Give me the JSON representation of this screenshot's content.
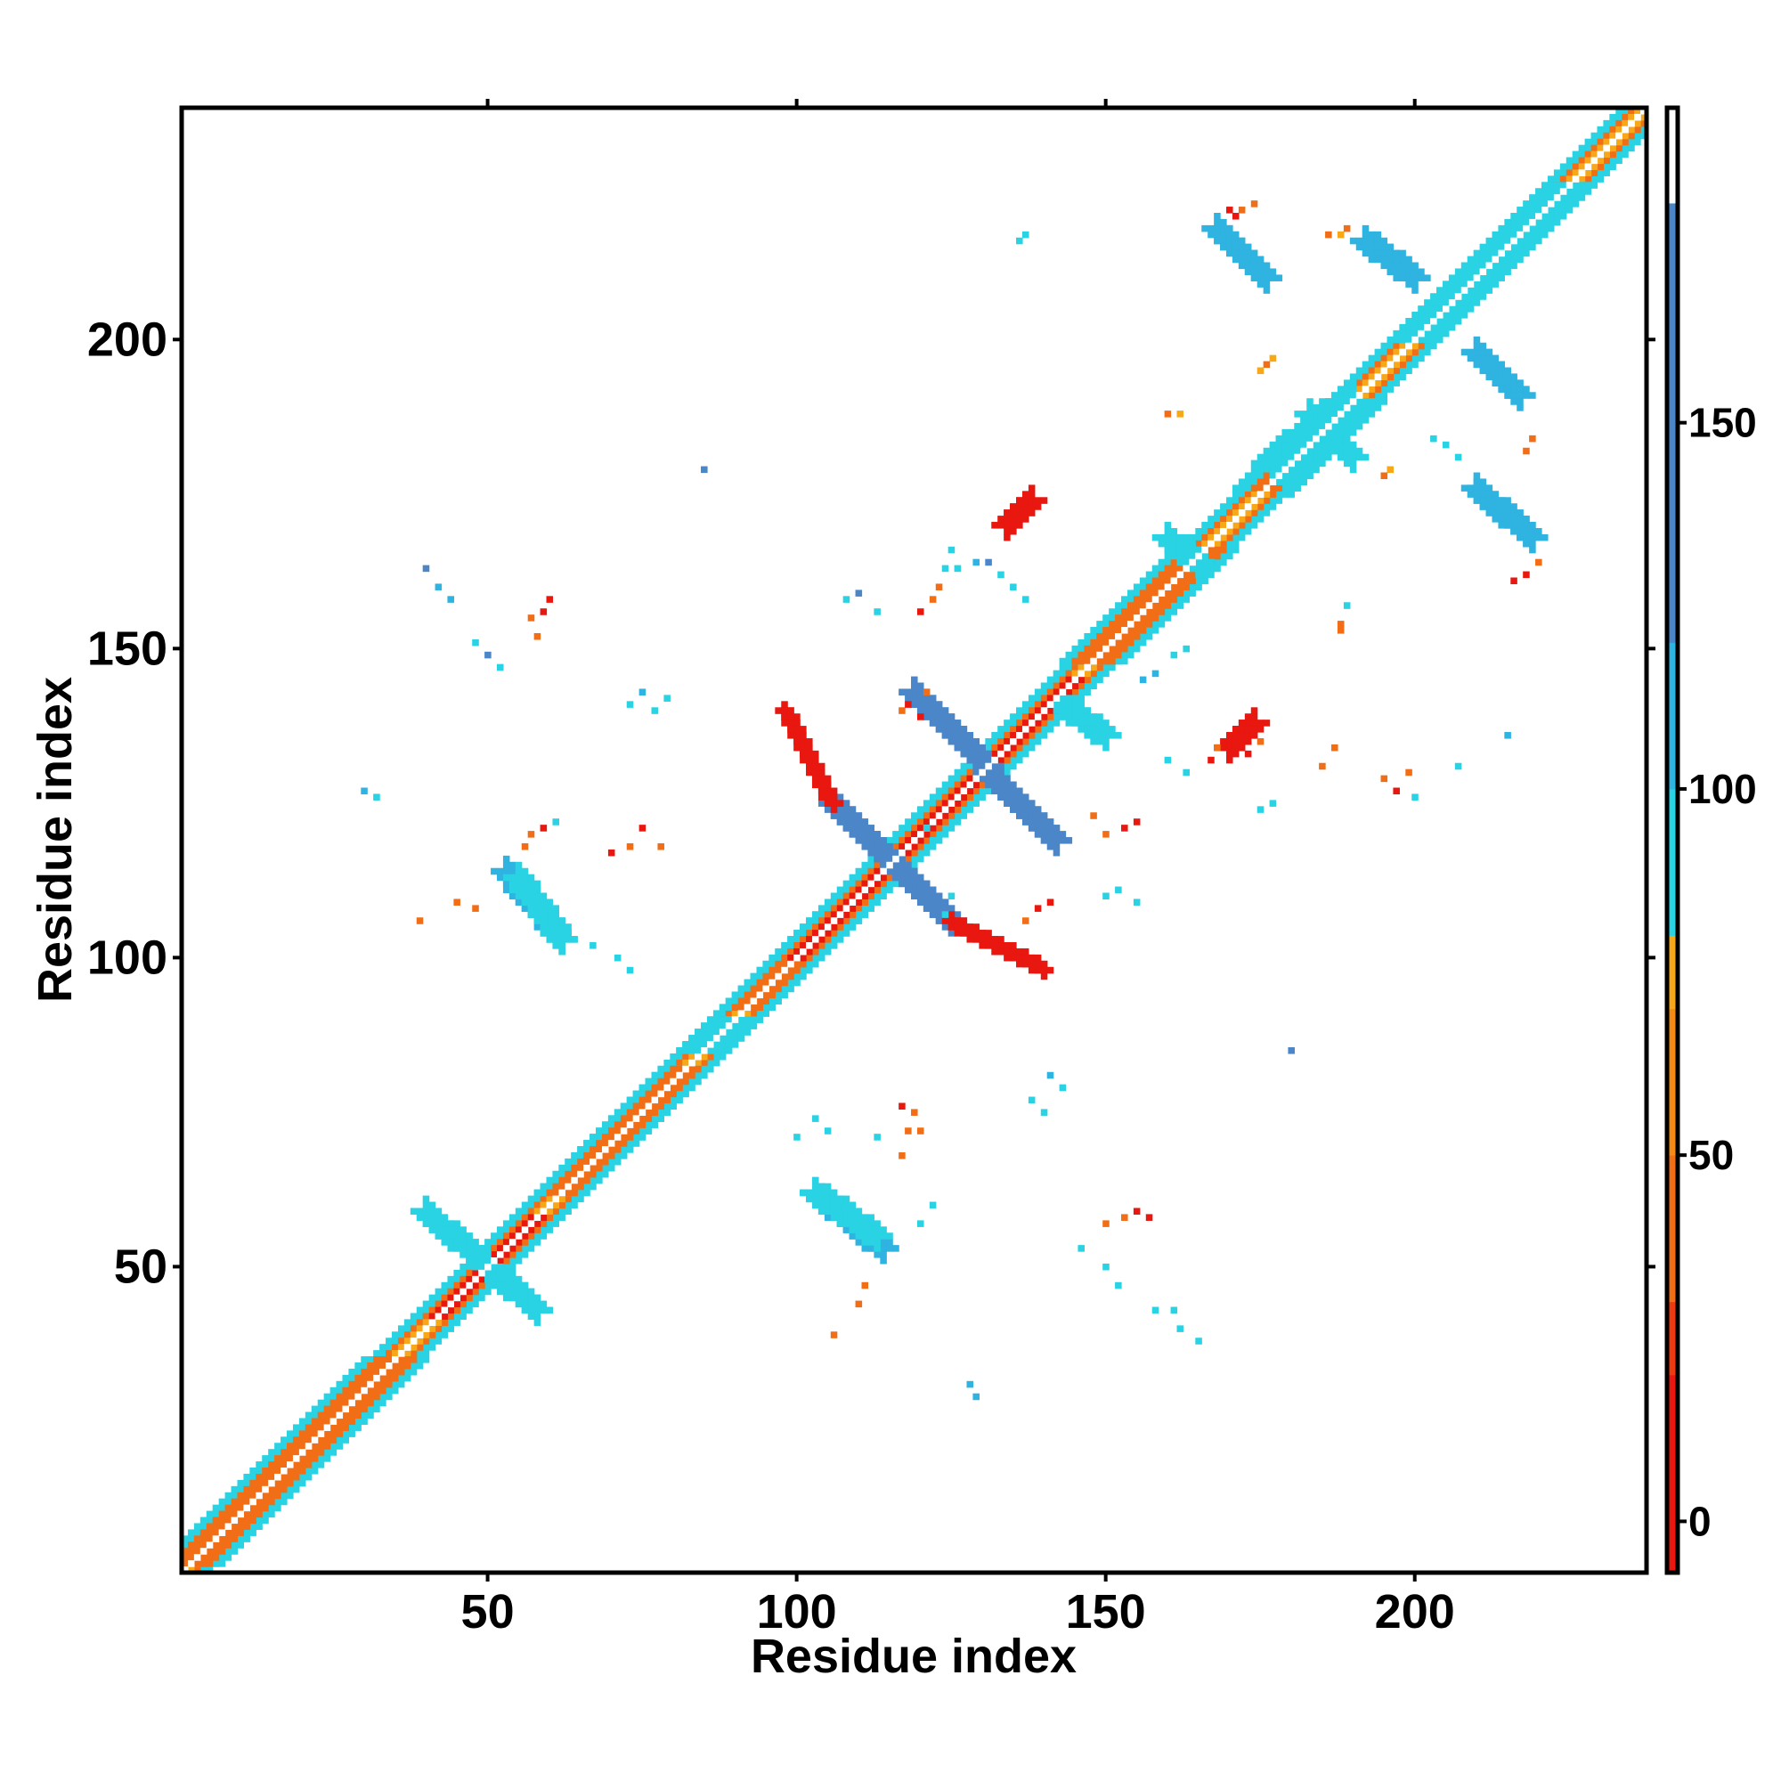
{
  "chart_data": {
    "type": "heatmap",
    "title": "",
    "xlabel": "Residue index",
    "ylabel": "Residue index",
    "xlim": [
      1,
      237
    ],
    "ylim": [
      1,
      237
    ],
    "xticks": [
      50,
      100,
      150,
      200
    ],
    "yticks": [
      50,
      100,
      150,
      200
    ],
    "grid": false,
    "colorbar": {
      "ticks": [
        0,
        50,
        100,
        150
      ],
      "range": [
        -7,
        193
      ],
      "bands": [
        {
          "from": -7,
          "to": 20,
          "color": "#e8170f"
        },
        {
          "from": 20,
          "to": 30,
          "color": "#ee3a10"
        },
        {
          "from": 30,
          "to": 50,
          "color": "#f16e16"
        },
        {
          "from": 50,
          "to": 70,
          "color": "#f28a14"
        },
        {
          "from": 70,
          "to": 80,
          "color": "#f6a818"
        },
        {
          "from": 80,
          "to": 100,
          "color": "#29d3e3"
        },
        {
          "from": 100,
          "to": 120,
          "color": "#2fb3e0"
        },
        {
          "from": 120,
          "to": 180,
          "color": "#4a86c8"
        },
        {
          "from": 180,
          "to": 193,
          "color": "#ffffff"
        }
      ]
    },
    "colors": {
      "red": "#e8170f",
      "red_orange": "#ee3a10",
      "orange": "#f16e16",
      "light_orange": "#f6a818",
      "cyan": "#29d3e3",
      "sky_blue": "#2fb3e0",
      "steel_blue": "#4a86c8",
      "white": "#ffffff"
    },
    "features": [
      {
        "kind": "diagonal",
        "from": 1,
        "to": 237,
        "color": "cyan",
        "width": 4
      },
      {
        "kind": "diagonal",
        "from": 1,
        "to": 237,
        "color": "orange",
        "width": 2
      },
      {
        "kind": "diagonal",
        "from": 1,
        "to": 237,
        "color": "light_orange",
        "width": 1
      },
      {
        "kind": "diagonal",
        "from": 1,
        "to": 237,
        "color": "white",
        "width": 0
      },
      {
        "kind": "diagonal",
        "from": 2,
        "to": 35,
        "color": "cyan",
        "width": 5
      },
      {
        "kind": "diagonal",
        "from": 2,
        "to": 35,
        "color": "orange",
        "width": 3
      },
      {
        "kind": "diagonal",
        "from": 42,
        "to": 58,
        "color": "red",
        "width": 1
      },
      {
        "kind": "diagonal",
        "from": 62,
        "to": 82,
        "color": "cyan",
        "width": 4
      },
      {
        "kind": "diagonal",
        "from": 62,
        "to": 82,
        "color": "orange",
        "width": 2
      },
      {
        "kind": "diagonal",
        "from": 85,
        "to": 90,
        "color": "cyan",
        "width": 4
      },
      {
        "kind": "diagonal",
        "from": 92,
        "to": 107,
        "color": "cyan",
        "width": 4
      },
      {
        "kind": "diagonal",
        "from": 92,
        "to": 107,
        "color": "orange",
        "width": 2
      },
      {
        "kind": "diagonal",
        "from": 100,
        "to": 145,
        "color": "red",
        "width": 1
      },
      {
        "kind": "diagonal",
        "from": 148,
        "to": 166,
        "color": "cyan",
        "width": 5
      },
      {
        "kind": "diagonal",
        "from": 148,
        "to": 166,
        "color": "orange",
        "width": 3
      },
      {
        "kind": "diagonal",
        "from": 176,
        "to": 190,
        "color": "cyan",
        "width": 5
      },
      {
        "kind": "diagonal",
        "from": 176,
        "to": 190,
        "color": "orange",
        "width": 2
      },
      {
        "kind": "diagonal",
        "from": 200,
        "to": 225,
        "color": "red",
        "width": 1
      },
      {
        "kind": "diagonal",
        "from": 200,
        "to": 225,
        "color": "cyan",
        "width": 3
      },
      {
        "kind": "segment",
        "from": [
          40,
          59
        ],
        "to": [
          58,
          43
        ],
        "color": "cyan",
        "width": 2
      },
      {
        "kind": "segment",
        "from": [
          119,
          143
        ],
        "to": [
          142,
          119
        ],
        "color": "steel_blue",
        "width": 2
      },
      {
        "kind": "segment",
        "from": [
          106,
          125
        ],
        "to": [
          125,
          106
        ],
        "color": "steel_blue",
        "width": 2
      },
      {
        "kind": "segment",
        "from": [
          53,
          114
        ],
        "to": [
          62,
          103
        ],
        "color": "sky_blue",
        "width": 2
      },
      {
        "kind": "segment",
        "from": [
          114,
          53
        ],
        "to": [
          103,
          62
        ],
        "color": "sky_blue",
        "width": 2
      },
      {
        "kind": "segment",
        "from": [
          103,
          62
        ],
        "to": [
          113,
          55
        ],
        "color": "cyan",
        "width": 2
      },
      {
        "kind": "segment",
        "from": [
          62,
          103
        ],
        "to": [
          55,
          113
        ],
        "color": "cyan",
        "width": 2
      },
      {
        "kind": "segment",
        "from": [
          168,
          218
        ],
        "to": [
          176,
          210
        ],
        "color": "sky_blue",
        "width": 2
      },
      {
        "kind": "segment",
        "from": [
          192,
          216
        ],
        "to": [
          200,
          210
        ],
        "color": "sky_blue",
        "width": 2
      },
      {
        "kind": "segment",
        "from": [
          210,
          198
        ],
        "to": [
          217,
          191
        ],
        "color": "sky_blue",
        "width": 2
      },
      {
        "kind": "segment",
        "from": [
          210,
          176
        ],
        "to": [
          219,
          168
        ],
        "color": "sky_blue",
        "width": 2
      },
      {
        "kind": "segment",
        "from": [
          218,
          168
        ],
        "to": [
          210,
          176
        ],
        "color": "sky_blue",
        "width": 1
      },
      {
        "kind": "segment",
        "from": [
          134,
          170
        ],
        "to": [
          138,
          174
        ],
        "color": "red",
        "width": 2
      },
      {
        "kind": "segment",
        "from": [
          170,
          134
        ],
        "to": [
          174,
          138
        ],
        "color": "red",
        "width": 2
      },
      {
        "kind": "segment",
        "from": [
          177,
          180
        ],
        "to": [
          190,
          190
        ],
        "color": "cyan",
        "width": 3
      },
      {
        "kind": "segment",
        "from": [
          180,
          177
        ],
        "to": [
          190,
          190
        ],
        "color": "cyan",
        "width": 2
      },
      {
        "kind": "segment",
        "from": [
          183,
          188
        ],
        "to": [
          190,
          181
        ],
        "color": "cyan",
        "width": 2
      },
      {
        "kind": "segment",
        "from": [
          160,
          168
        ],
        "to": [
          166,
          163
        ],
        "color": "cyan",
        "width": 2
      },
      {
        "kind": "segment",
        "from": [
          143,
          141
        ],
        "to": [
          150,
          136
        ],
        "color": "cyan",
        "width": 2
      },
      {
        "kind": "segment",
        "from": [
          125,
          106
        ],
        "to": [
          140,
          98
        ],
        "color": "red",
        "width": 1
      },
      {
        "kind": "segment",
        "from": [
          106,
          125
        ],
        "to": [
          98,
          140
        ],
        "color": "red",
        "width": 1
      }
    ],
    "cells": [
      [
        170,
        221,
        "red"
      ],
      [
        171,
        220,
        "red"
      ],
      [
        172,
        221,
        "orange"
      ],
      [
        174,
        222,
        "orange"
      ],
      [
        188,
        217,
        "light_orange"
      ],
      [
        189,
        218,
        "orange"
      ],
      [
        186,
        217,
        "orange"
      ],
      [
        137,
        217,
        "cyan"
      ],
      [
        136,
        216,
        "cyan"
      ],
      [
        160,
        188,
        "orange"
      ],
      [
        162,
        188,
        "light_orange"
      ],
      [
        176,
        196,
        "orange"
      ],
      [
        177,
        197,
        "light_orange"
      ],
      [
        175,
        195,
        "light_orange"
      ],
      [
        196,
        179,
        "light_orange"
      ],
      [
        195,
        178,
        "orange"
      ],
      [
        218,
        182,
        "orange"
      ],
      [
        219,
        184,
        "orange"
      ],
      [
        220,
        164,
        "orange"
      ],
      [
        218,
        162,
        "red"
      ],
      [
        216,
        161,
        "red"
      ],
      [
        85,
        179,
        "steel_blue"
      ],
      [
        40,
        163,
        "steel_blue"
      ],
      [
        42,
        160,
        "sky_blue"
      ],
      [
        44,
        158,
        "sky_blue"
      ],
      [
        48,
        151,
        "cyan"
      ],
      [
        50,
        149,
        "steel_blue"
      ],
      [
        52,
        147,
        "cyan"
      ],
      [
        57,
        155,
        "orange"
      ],
      [
        58,
        152,
        "orange"
      ],
      [
        59,
        156,
        "red"
      ],
      [
        60,
        158,
        "red"
      ],
      [
        73,
        141,
        "cyan"
      ],
      [
        75,
        143,
        "sky_blue"
      ],
      [
        77,
        140,
        "cyan"
      ],
      [
        79,
        142,
        "cyan"
      ],
      [
        30,
        127,
        "sky_blue"
      ],
      [
        32,
        126,
        "cyan"
      ],
      [
        57,
        120,
        "orange"
      ],
      [
        59,
        121,
        "red"
      ],
      [
        61,
        122,
        "cyan"
      ],
      [
        56,
        118,
        "orange"
      ],
      [
        70,
        117,
        "red"
      ],
      [
        73,
        118,
        "orange"
      ],
      [
        75,
        121,
        "red"
      ],
      [
        78,
        118,
        "orange"
      ],
      [
        45,
        109,
        "orange"
      ],
      [
        48,
        108,
        "orange"
      ],
      [
        39,
        106,
        "orange"
      ],
      [
        71,
        100,
        "cyan"
      ],
      [
        73,
        98,
        "cyan"
      ],
      [
        67,
        102,
        "cyan"
      ],
      [
        105,
        72,
        "cyan"
      ],
      [
        103,
        74,
        "cyan"
      ],
      [
        100,
        71,
        "cyan"
      ],
      [
        113,
        71,
        "cyan"
      ],
      [
        117,
        76,
        "red"
      ],
      [
        119,
        75,
        "orange"
      ],
      [
        118,
        72,
        "orange"
      ],
      [
        120,
        72,
        "orange"
      ],
      [
        117,
        68,
        "orange"
      ],
      [
        122,
        60,
        "cyan"
      ],
      [
        120,
        57,
        "cyan"
      ],
      [
        106,
        39,
        "orange"
      ],
      [
        110,
        44,
        "orange"
      ],
      [
        111,
        47,
        "orange"
      ],
      [
        128,
        31,
        "sky_blue"
      ],
      [
        129,
        29,
        "sky_blue"
      ],
      [
        141,
        81,
        "sky_blue"
      ],
      [
        138,
        77,
        "cyan"
      ],
      [
        140,
        75,
        "cyan"
      ],
      [
        143,
        79,
        "cyan"
      ],
      [
        150,
        57,
        "orange"
      ],
      [
        153,
        58,
        "orange"
      ],
      [
        155,
        59,
        "red"
      ],
      [
        157,
        58,
        "red"
      ],
      [
        146,
        53,
        "cyan"
      ],
      [
        150,
        50,
        "cyan"
      ],
      [
        152,
        47,
        "cyan"
      ],
      [
        158,
        43,
        "cyan"
      ],
      [
        161,
        43,
        "cyan"
      ],
      [
        162,
        40,
        "cyan"
      ],
      [
        165,
        38,
        "cyan"
      ],
      [
        180,
        85,
        "steel_blue"
      ],
      [
        200,
        126,
        "cyan"
      ],
      [
        148,
        123,
        "orange"
      ],
      [
        150,
        120,
        "orange"
      ],
      [
        153,
        121,
        "red"
      ],
      [
        155,
        122,
        "red"
      ],
      [
        137,
        106,
        "orange"
      ],
      [
        139,
        108,
        "red"
      ],
      [
        141,
        109,
        "red"
      ],
      [
        150,
        110,
        "cyan"
      ],
      [
        152,
        111,
        "cyan"
      ],
      [
        155,
        109,
        "cyan"
      ],
      [
        122,
        119,
        "cyan"
      ],
      [
        121,
        121,
        "cyan"
      ],
      [
        125,
        110,
        "cyan"
      ],
      [
        124,
        107,
        "cyan"
      ],
      [
        117,
        140,
        "orange"
      ],
      [
        118,
        141,
        "red"
      ],
      [
        120,
        139,
        "red"
      ],
      [
        121,
        143,
        "orange"
      ],
      [
        120,
        156,
        "red"
      ],
      [
        122,
        158,
        "orange"
      ],
      [
        123,
        160,
        "orange"
      ],
      [
        124,
        163,
        "cyan"
      ],
      [
        125,
        166,
        "cyan"
      ],
      [
        126,
        163,
        "cyan"
      ],
      [
        129,
        164,
        "sky_blue"
      ],
      [
        131,
        164,
        "steel_blue"
      ],
      [
        133,
        162,
        "cyan"
      ],
      [
        135,
        160,
        "cyan"
      ],
      [
        137,
        158,
        "cyan"
      ],
      [
        108,
        158,
        "cyan"
      ],
      [
        110,
        159,
        "steel_blue"
      ],
      [
        113,
        156,
        "cyan"
      ],
      [
        161,
        149,
        "cyan"
      ],
      [
        163,
        150,
        "cyan"
      ],
      [
        158,
        146,
        "sky_blue"
      ],
      [
        156,
        145,
        "sky_blue"
      ],
      [
        167,
        132,
        "red"
      ],
      [
        168,
        134,
        "orange"
      ],
      [
        173,
        133,
        "red"
      ],
      [
        175,
        135,
        "orange"
      ],
      [
        195,
        129,
        "orange"
      ],
      [
        197,
        127,
        "red"
      ],
      [
        199,
        130,
        "orange"
      ],
      [
        185,
        131,
        "orange"
      ],
      [
        187,
        134,
        "orange"
      ],
      [
        160,
        132,
        "cyan"
      ],
      [
        163,
        130,
        "cyan"
      ],
      [
        175,
        124,
        "cyan"
      ],
      [
        177,
        125,
        "cyan"
      ],
      [
        207,
        131,
        "cyan"
      ],
      [
        215,
        136,
        "sky_blue"
      ],
      [
        203,
        184,
        "cyan"
      ],
      [
        205,
        183,
        "cyan"
      ],
      [
        207,
        181,
        "cyan"
      ],
      [
        181,
        183,
        "cyan"
      ],
      [
        179,
        185,
        "cyan"
      ],
      [
        182,
        178,
        "cyan"
      ],
      [
        188,
        154,
        "orange"
      ],
      [
        189,
        157,
        "cyan"
      ],
      [
        188,
        153,
        "orange"
      ]
    ]
  }
}
